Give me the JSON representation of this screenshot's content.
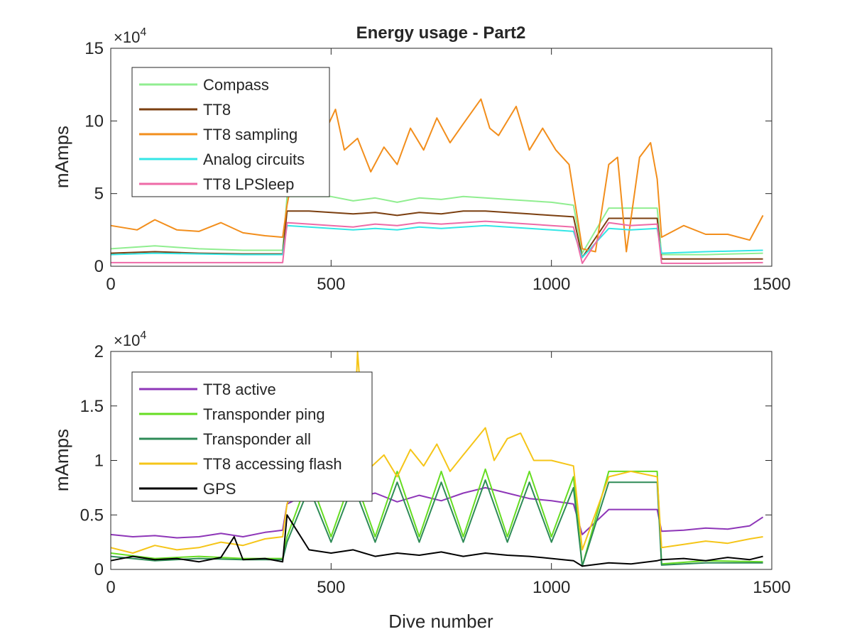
{
  "chart_data": [
    {
      "type": "line",
      "title": "Energy usage - Part2",
      "xlabel": "",
      "ylabel": "mAmps",
      "xlim": [
        0,
        1500
      ],
      "ylim": [
        0,
        150000
      ],
      "multiplier_label": "×10",
      "multiplier_exponent": "4",
      "x_ticks": [
        0,
        500,
        1000,
        1500
      ],
      "x_tick_labels": [
        "0",
        "500",
        "1000",
        "1500"
      ],
      "y_ticks": [
        0,
        50000,
        100000,
        150000
      ],
      "y_tick_labels": [
        "0",
        "5",
        "10",
        "15"
      ],
      "grid": false,
      "legend_position": "top-left",
      "series": [
        {
          "name": "Compass",
          "color": "#90ee90",
          "x": [
            0,
            100,
            200,
            300,
            390,
            400,
            450,
            500,
            550,
            600,
            650,
            700,
            750,
            800,
            850,
            900,
            950,
            1000,
            1050,
            1070,
            1130,
            1180,
            1240,
            1250,
            1350,
            1480
          ],
          "y": [
            12000,
            14000,
            12000,
            11000,
            11000,
            48000,
            48000,
            48000,
            45000,
            47000,
            44000,
            47000,
            46000,
            48000,
            47000,
            46000,
            45000,
            44000,
            42000,
            9000,
            40000,
            40000,
            40000,
            8000,
            8000,
            9000
          ]
        },
        {
          "name": "TT8",
          "color": "#7b3f10",
          "x": [
            0,
            100,
            200,
            300,
            390,
            400,
            450,
            500,
            550,
            600,
            650,
            700,
            750,
            800,
            850,
            900,
            950,
            1000,
            1050,
            1070,
            1130,
            1180,
            1240,
            1250,
            1350,
            1480
          ],
          "y": [
            9000,
            10000,
            9000,
            8500,
            8500,
            38000,
            38000,
            37000,
            36000,
            37000,
            35000,
            37000,
            36000,
            38000,
            38000,
            37000,
            36000,
            35000,
            34000,
            6000,
            33000,
            33000,
            33000,
            5000,
            5000,
            5000
          ]
        },
        {
          "name": "TT8 sampling",
          "color": "#f28e1c",
          "x": [
            0,
            60,
            100,
            150,
            200,
            250,
            300,
            350,
            390,
            400,
            430,
            460,
            490,
            510,
            530,
            560,
            590,
            620,
            650,
            680,
            710,
            740,
            770,
            800,
            840,
            860,
            880,
            920,
            950,
            980,
            1010,
            1040,
            1070,
            1100,
            1130,
            1150,
            1170,
            1200,
            1225,
            1240,
            1250,
            1300,
            1350,
            1400,
            1450,
            1480
          ],
          "y": [
            28000,
            25000,
            32000,
            25000,
            24000,
            30000,
            23000,
            21000,
            20000,
            42000,
            90000,
            62000,
            95000,
            108000,
            80000,
            88000,
            65000,
            82000,
            70000,
            95000,
            80000,
            102000,
            85000,
            98000,
            115000,
            95000,
            90000,
            110000,
            80000,
            95000,
            80000,
            70000,
            12000,
            10000,
            70000,
            75000,
            10000,
            75000,
            85000,
            60000,
            20000,
            28000,
            22000,
            22000,
            18000,
            35000
          ]
        },
        {
          "name": "Analog circuits",
          "color": "#33e6e6",
          "x": [
            0,
            100,
            200,
            300,
            390,
            400,
            450,
            500,
            550,
            600,
            650,
            700,
            750,
            800,
            850,
            900,
            950,
            1000,
            1050,
            1070,
            1130,
            1180,
            1240,
            1250,
            1350,
            1480
          ],
          "y": [
            8000,
            9000,
            8500,
            8000,
            8000,
            28000,
            27000,
            26000,
            25000,
            26000,
            25000,
            27000,
            26000,
            27000,
            28000,
            27000,
            26000,
            25000,
            24000,
            6000,
            26000,
            25000,
            26000,
            9000,
            10000,
            11000
          ]
        },
        {
          "name": "TT8 LPSleep",
          "color": "#ee6aa7",
          "x": [
            0,
            100,
            200,
            300,
            390,
            400,
            450,
            500,
            550,
            600,
            650,
            700,
            750,
            800,
            850,
            900,
            950,
            1000,
            1050,
            1070,
            1130,
            1180,
            1240,
            1250,
            1350,
            1480
          ],
          "y": [
            2500,
            2500,
            2500,
            2500,
            2500,
            30000,
            29000,
            28000,
            27000,
            29000,
            28000,
            30000,
            29000,
            30000,
            31000,
            30000,
            29000,
            28000,
            27000,
            2000,
            30000,
            28000,
            29000,
            2000,
            2000,
            2500
          ]
        }
      ]
    },
    {
      "type": "line",
      "title": "",
      "xlabel": "Dive number",
      "ylabel": "mAmps",
      "xlim": [
        0,
        1500
      ],
      "ylim": [
        0,
        20000
      ],
      "multiplier_label": "×10",
      "multiplier_exponent": "4",
      "x_ticks": [
        0,
        500,
        1000,
        1500
      ],
      "x_tick_labels": [
        "0",
        "500",
        "1000",
        "1500"
      ],
      "y_ticks": [
        0,
        5000,
        10000,
        15000,
        20000
      ],
      "y_tick_labels": [
        "0",
        "0.5",
        "1",
        "1.5",
        "2"
      ],
      "grid": false,
      "legend_position": "top-left",
      "series": [
        {
          "name": "TT8 active",
          "color": "#8e36b8",
          "x": [
            0,
            50,
            100,
            150,
            200,
            250,
            300,
            350,
            390,
            400,
            450,
            500,
            550,
            600,
            650,
            700,
            750,
            800,
            850,
            900,
            950,
            1000,
            1050,
            1070,
            1130,
            1180,
            1240,
            1250,
            1300,
            1350,
            1400,
            1450,
            1480
          ],
          "y": [
            3200,
            3000,
            3100,
            2900,
            3000,
            3300,
            3000,
            3400,
            3600,
            6000,
            7000,
            7200,
            6500,
            7000,
            6200,
            6800,
            6300,
            7000,
            7500,
            7000,
            6500,
            6300,
            6000,
            3200,
            5500,
            5500,
            5500,
            3500,
            3600,
            3800,
            3700,
            4000,
            4800
          ]
        },
        {
          "name": "Transponder ping",
          "color": "#66dd22",
          "x": [
            0,
            100,
            200,
            300,
            390,
            400,
            450,
            500,
            550,
            600,
            650,
            700,
            750,
            800,
            850,
            900,
            950,
            1000,
            1050,
            1070,
            1130,
            1180,
            1240,
            1250,
            1350,
            1480
          ],
          "y": [
            1500,
            1000,
            1200,
            1000,
            1000,
            3000,
            8500,
            3000,
            8800,
            3000,
            9000,
            3000,
            9000,
            3000,
            9200,
            3000,
            9000,
            3000,
            8500,
            300,
            9000,
            9000,
            9000,
            500,
            800,
            700
          ]
        },
        {
          "name": "Transponder all",
          "color": "#2e8b57",
          "x": [
            0,
            100,
            200,
            300,
            390,
            400,
            450,
            500,
            550,
            600,
            650,
            700,
            750,
            800,
            850,
            900,
            950,
            1000,
            1050,
            1070,
            1130,
            1180,
            1240,
            1250,
            1350,
            1480
          ],
          "y": [
            1200,
            800,
            1000,
            900,
            900,
            2500,
            7500,
            2500,
            7800,
            2500,
            8000,
            2500,
            8000,
            2500,
            8200,
            2500,
            8000,
            2500,
            7500,
            300,
            8000,
            8000,
            8000,
            400,
            600,
            600
          ]
        },
        {
          "name": "TT8 accessing flash",
          "color": "#f5c518",
          "x": [
            0,
            50,
            100,
            150,
            200,
            250,
            300,
            350,
            390,
            400,
            430,
            460,
            490,
            520,
            550,
            560,
            580,
            620,
            650,
            680,
            710,
            740,
            770,
            800,
            830,
            850,
            870,
            900,
            930,
            960,
            1000,
            1050,
            1070,
            1130,
            1180,
            1240,
            1250,
            1300,
            1350,
            1400,
            1450,
            1480
          ],
          "y": [
            2000,
            1500,
            2200,
            1800,
            2000,
            2500,
            2200,
            2800,
            3000,
            6000,
            9500,
            7000,
            9000,
            8000,
            10000,
            20000,
            9000,
            10500,
            8500,
            11000,
            9500,
            11500,
            9000,
            10500,
            12000,
            13000,
            10000,
            12000,
            12500,
            10000,
            10000,
            9500,
            1800,
            8500,
            9000,
            8500,
            2000,
            2300,
            2600,
            2400,
            2800,
            3000
          ]
        },
        {
          "name": "GPS",
          "color": "#000000",
          "x": [
            0,
            50,
            100,
            150,
            200,
            250,
            280,
            300,
            350,
            390,
            400,
            450,
            500,
            550,
            600,
            650,
            700,
            750,
            800,
            850,
            900,
            950,
            1000,
            1050,
            1070,
            1130,
            1180,
            1240,
            1250,
            1300,
            1350,
            1400,
            1450,
            1480
          ],
          "y": [
            800,
            1200,
            900,
            1000,
            700,
            1100,
            3000,
            900,
            1000,
            700,
            5000,
            1800,
            1500,
            1800,
            1200,
            1500,
            1300,
            1600,
            1200,
            1500,
            1300,
            1200,
            1000,
            800,
            300,
            600,
            500,
            800,
            900,
            1000,
            800,
            1100,
            900,
            1200
          ]
        }
      ]
    }
  ]
}
